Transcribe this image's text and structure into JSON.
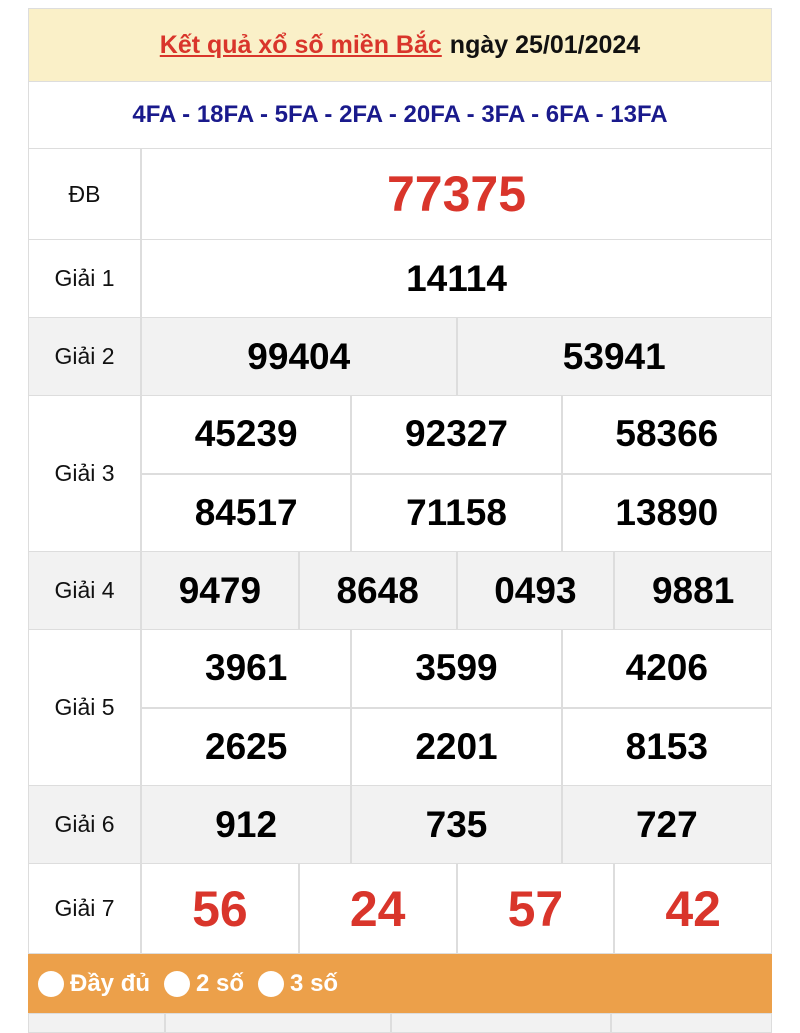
{
  "header": {
    "title_link": "Kết quả xổ số miền Bắc",
    "title_date": "ngày 25/01/2024"
  },
  "codes": "4FA - 18FA - 5FA - 2FA - 20FA - 3FA - 6FA - 13FA",
  "prizes": [
    {
      "label": "ĐB",
      "rows": [
        [
          "77375"
        ]
      ]
    },
    {
      "label": "Giải 1",
      "rows": [
        [
          "14114"
        ]
      ]
    },
    {
      "label": "Giải 2",
      "rows": [
        [
          "99404",
          "53941"
        ]
      ]
    },
    {
      "label": "Giải 3",
      "rows": [
        [
          "45239",
          "92327",
          "58366"
        ],
        [
          "84517",
          "71158",
          "13890"
        ]
      ]
    },
    {
      "label": "Giải 4",
      "rows": [
        [
          "9479",
          "8648",
          "0493",
          "9881"
        ]
      ]
    },
    {
      "label": "Giải 5",
      "rows": [
        [
          "3961",
          "3599",
          "4206"
        ],
        [
          "2625",
          "2201",
          "8153"
        ]
      ]
    },
    {
      "label": "Giải 6",
      "rows": [
        [
          "912",
          "735",
          "727"
        ]
      ]
    },
    {
      "label": "Giải 7",
      "rows": [
        [
          "56",
          "24",
          "57",
          "42"
        ]
      ]
    }
  ],
  "options": [
    "Đầy đủ",
    "2 số",
    "3 số"
  ],
  "colors": {
    "accent_red": "#d9352b",
    "code_blue": "#1a1a8c",
    "options_bar": "#eca04a",
    "header_bg": "#faf0c8"
  }
}
